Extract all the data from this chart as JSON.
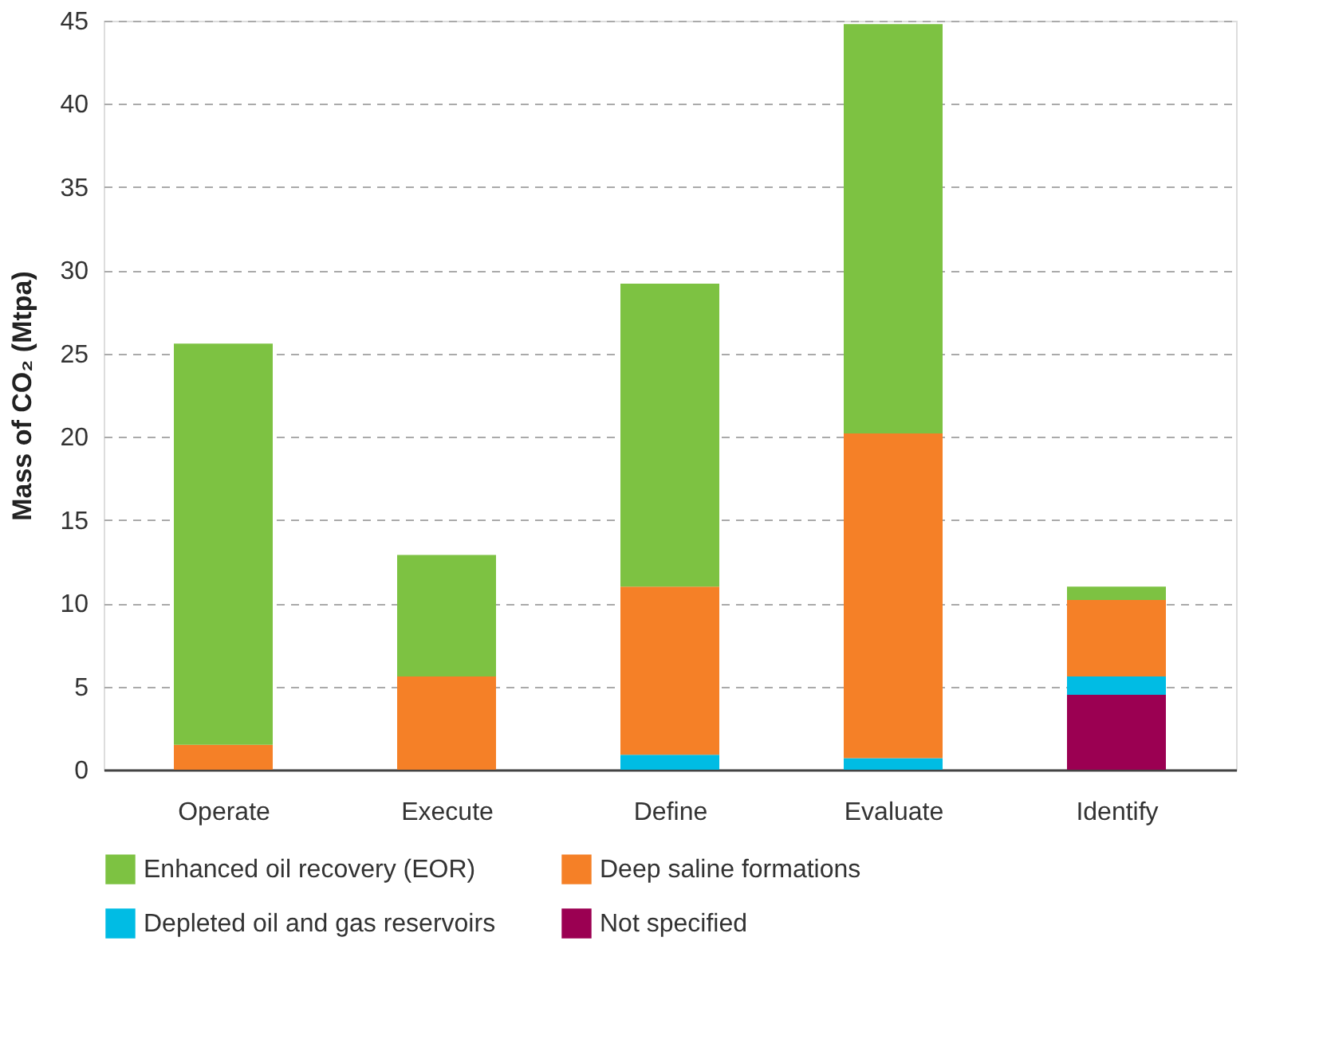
{
  "chart_data": {
    "type": "bar",
    "stacked": true,
    "ylabel": "Mass of CO₂  (Mtpa)",
    "categories": [
      "Operate",
      "Execute",
      "Define",
      "Evaluate",
      "Identify"
    ],
    "series": [
      {
        "name": "Not specified",
        "color": "#9b0052",
        "values": [
          null,
          null,
          null,
          null,
          4.5
        ]
      },
      {
        "name": "Depleted oil and gas reservoirs",
        "color": "#00bce4",
        "values": [
          null,
          null,
          0.9,
          0.7,
          1.1
        ]
      },
      {
        "name": "Deep saline formations",
        "color": "#f58027",
        "values": [
          1.5,
          5.6,
          10.1,
          19.5,
          4.6
        ]
      },
      {
        "name": "Enhanced oil recovery (EOR)",
        "color": "#7dc242",
        "values": [
          24.1,
          7.3,
          18.2,
          24.6,
          0.8
        ]
      }
    ],
    "ylim": [
      0,
      45
    ],
    "yticks": [
      0,
      5,
      10,
      15,
      20,
      25,
      30,
      35,
      40,
      45
    ],
    "grid": "y",
    "legend": "bottom"
  }
}
